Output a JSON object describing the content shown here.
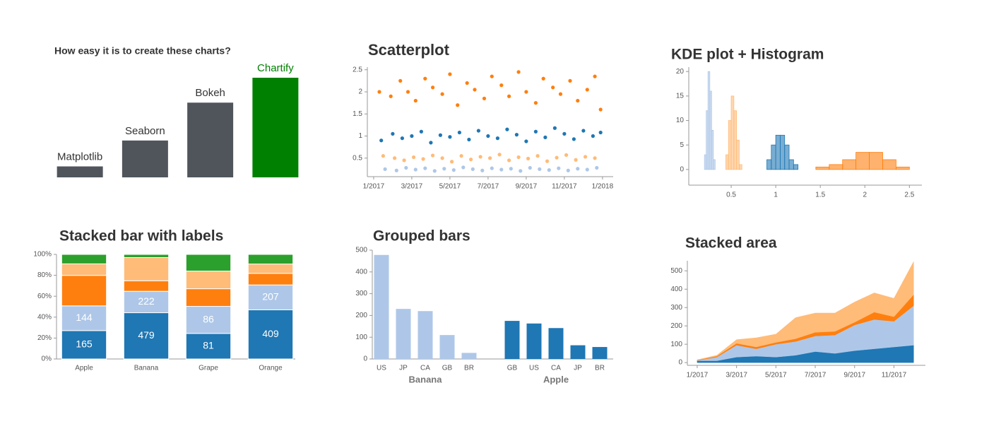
{
  "chart_data": [
    {
      "type": "bar",
      "title": "How easy it is to create these charts?",
      "categories": [
        "Matplotlib",
        "Seaborn",
        "Bokeh",
        "Chartify"
      ],
      "values": [
        11,
        37,
        75,
        100
      ],
      "colors": [
        "#50555c",
        "#50555c",
        "#50555c",
        "#008000"
      ]
    },
    {
      "type": "scatter",
      "title": "Scatterplot",
      "xlim": [
        0.67,
        13.56
      ],
      "ylim": [
        0.08,
        2.56
      ],
      "xticks": [
        {
          "value": 1,
          "label": "1/2017"
        },
        {
          "value": 3,
          "label": "3/2017"
        },
        {
          "value": 5,
          "label": "5/2017"
        },
        {
          "value": 7,
          "label": "7/2017"
        },
        {
          "value": 9,
          "label": "9/2017"
        },
        {
          "value": 11,
          "label": "11/2017"
        },
        {
          "value": 13,
          "label": "1/2018"
        }
      ],
      "yticks": [
        0.5,
        1,
        1.5,
        2,
        2.5
      ],
      "series": [
        {
          "color": "#ff7f0e",
          "x": [
            1.3,
            1.9,
            2.4,
            2.8,
            3.2,
            3.7,
            4.1,
            4.6,
            5.0,
            5.4,
            5.9,
            6.3,
            6.8,
            7.2,
            7.7,
            8.1,
            8.6,
            9.0,
            9.5,
            9.9,
            10.4,
            10.8,
            11.3,
            11.7,
            12.2,
            12.6,
            12.9
          ],
          "values": [
            2.0,
            1.9,
            2.25,
            2.0,
            1.8,
            2.3,
            2.1,
            1.95,
            2.4,
            1.7,
            2.2,
            2.05,
            1.85,
            2.35,
            2.15,
            1.9,
            2.45,
            2.0,
            1.75,
            2.3,
            2.1,
            1.95,
            2.25,
            1.8,
            2.05,
            2.35,
            1.6
          ]
        },
        {
          "color": "#1f77b4",
          "x": [
            1.4,
            2.0,
            2.5,
            3.0,
            3.5,
            4.0,
            4.5,
            5.0,
            5.5,
            6.0,
            6.5,
            7.0,
            7.5,
            8.0,
            8.5,
            9.0,
            9.5,
            10.0,
            10.5,
            11.0,
            11.5,
            12.0,
            12.5,
            12.9
          ],
          "values": [
            0.9,
            1.05,
            0.95,
            1.0,
            1.1,
            0.85,
            1.02,
            0.98,
            1.08,
            0.92,
            1.12,
            1.0,
            0.95,
            1.15,
            1.03,
            0.88,
            1.1,
            0.97,
            1.18,
            1.05,
            0.93,
            1.12,
            1.0,
            1.08
          ]
        },
        {
          "color": "#ffbb78",
          "x": [
            1.5,
            2.1,
            2.6,
            3.1,
            3.6,
            4.1,
            4.6,
            5.1,
            5.6,
            6.1,
            6.6,
            7.1,
            7.6,
            8.1,
            8.6,
            9.1,
            9.6,
            10.1,
            10.6,
            11.1,
            11.6,
            12.1,
            12.6
          ],
          "values": [
            0.55,
            0.5,
            0.45,
            0.52,
            0.48,
            0.56,
            0.5,
            0.42,
            0.55,
            0.47,
            0.53,
            0.5,
            0.58,
            0.45,
            0.52,
            0.49,
            0.55,
            0.43,
            0.51,
            0.57,
            0.46,
            0.53,
            0.5
          ]
        },
        {
          "color": "#aec7e8",
          "x": [
            1.6,
            2.2,
            2.7,
            3.2,
            3.7,
            4.2,
            4.7,
            5.2,
            5.7,
            6.2,
            6.7,
            7.2,
            7.7,
            8.2,
            8.7,
            9.2,
            9.7,
            10.2,
            10.7,
            11.2,
            11.7,
            12.2,
            12.7
          ],
          "values": [
            0.25,
            0.22,
            0.28,
            0.24,
            0.27,
            0.21,
            0.26,
            0.23,
            0.29,
            0.25,
            0.22,
            0.27,
            0.24,
            0.26,
            0.21,
            0.28,
            0.25,
            0.23,
            0.27,
            0.22,
            0.26,
            0.24,
            0.28
          ]
        }
      ]
    },
    {
      "type": "histogram",
      "title": "KDE plot + Histogram",
      "xlim": [
        0.024,
        2.64
      ],
      "ylim": [
        -3.2,
        20.9
      ],
      "xticks": [
        0.5,
        1,
        1.5,
        2,
        2.5
      ],
      "yticks": [
        0,
        5,
        10,
        15,
        20
      ],
      "series": [
        {
          "color": "#aec7e8",
          "bins": [
            0.2,
            0.22,
            0.24,
            0.26,
            0.28,
            0.3,
            0.32
          ],
          "values": [
            3,
            12,
            20,
            16,
            8,
            2
          ]
        },
        {
          "color": "#ffbb78",
          "bins": [
            0.44,
            0.47,
            0.5,
            0.53,
            0.56,
            0.59,
            0.62
          ],
          "values": [
            3,
            10,
            15,
            12,
            6,
            1
          ]
        },
        {
          "color": "#1f77b4",
          "bins": [
            0.9,
            0.95,
            1.0,
            1.05,
            1.1,
            1.15,
            1.2,
            1.25
          ],
          "values": [
            2,
            5,
            7,
            7,
            5,
            2,
            1
          ]
        },
        {
          "color": "#ff7f0e",
          "bins": [
            1.45,
            1.6,
            1.75,
            1.9,
            2.05,
            2.2,
            2.35,
            2.5
          ],
          "values": [
            0.5,
            1,
            2,
            3.5,
            3.5,
            2,
            0.5
          ]
        }
      ]
    },
    {
      "type": "bar",
      "title": "Stacked bar with labels",
      "stacked": true,
      "normalize": true,
      "categories": [
        "Apple",
        "Banana",
        "Grape",
        "Orange"
      ],
      "ylim": [
        0,
        100
      ],
      "yticks": [
        {
          "value": 0,
          "label": "0%"
        },
        {
          "value": 20,
          "label": "20%"
        },
        {
          "value": 40,
          "label": "40%"
        },
        {
          "value": 60,
          "label": "60%"
        },
        {
          "value": 80,
          "label": "80%"
        },
        {
          "value": 100,
          "label": "100%"
        }
      ],
      "series": [
        {
          "color": "#1f77b4",
          "values": [
            165,
            479,
            81,
            409
          ],
          "show_labels": true
        },
        {
          "color": "#aec7e8",
          "values": [
            144,
            222,
            86,
            207
          ],
          "show_labels": true
        },
        {
          "color": "#ff7f0e",
          "values": [
            177,
            109,
            56,
            96
          ]
        },
        {
          "color": "#ffbb78",
          "values": [
            67,
            240,
            56,
            78
          ]
        },
        {
          "color": "#2ca02c",
          "values": [
            55,
            33,
            53,
            80
          ]
        }
      ]
    },
    {
      "type": "bar",
      "title": "Grouped bars",
      "ylim": [
        0,
        500
      ],
      "yticks": [
        0,
        100,
        200,
        300,
        400,
        500
      ],
      "groups": [
        {
          "name": "Banana",
          "color": "#aec7e8",
          "categories": [
            "US",
            "JP",
            "CA",
            "GB",
            "BR"
          ],
          "values": [
            478,
            230,
            220,
            110,
            28
          ]
        },
        {
          "name": "Apple",
          "color": "#1f77b4",
          "categories": [
            "GB",
            "US",
            "CA",
            "JP",
            "BR"
          ],
          "values": [
            175,
            163,
            142,
            63,
            55
          ]
        }
      ]
    },
    {
      "type": "area",
      "title": "Stacked area",
      "stacked": true,
      "x": [
        1,
        2,
        3,
        4,
        5,
        6,
        7,
        8,
        9,
        10,
        11,
        12
      ],
      "xlim": [
        0.5,
        12.6
      ],
      "ylim": [
        -15,
        555
      ],
      "xticks": [
        {
          "value": 1,
          "label": "1/2017"
        },
        {
          "value": 3,
          "label": "3/2017"
        },
        {
          "value": 5,
          "label": "5/2017"
        },
        {
          "value": 7,
          "label": "7/2017"
        },
        {
          "value": 9,
          "label": "9/2017"
        },
        {
          "value": 11,
          "label": "11/2017"
        }
      ],
      "yticks": [
        0,
        100,
        200,
        300,
        400,
        500
      ],
      "series": [
        {
          "color": "#1f77b4",
          "values": [
            10,
            10,
            30,
            35,
            30,
            40,
            60,
            50,
            65,
            75,
            85,
            95
          ]
        },
        {
          "color": "#aec7e8",
          "values": [
            2,
            20,
            65,
            40,
            70,
            75,
            85,
            100,
            140,
            160,
            140,
            215
          ]
        },
        {
          "color": "#ff7f0e",
          "values": [
            2,
            5,
            10,
            10,
            10,
            15,
            20,
            20,
            15,
            40,
            25,
            60
          ]
        },
        {
          "color": "#ffbb78",
          "values": [
            1,
            5,
            20,
            50,
            45,
            115,
            105,
            100,
            110,
            105,
            100,
            180
          ]
        }
      ]
    }
  ]
}
